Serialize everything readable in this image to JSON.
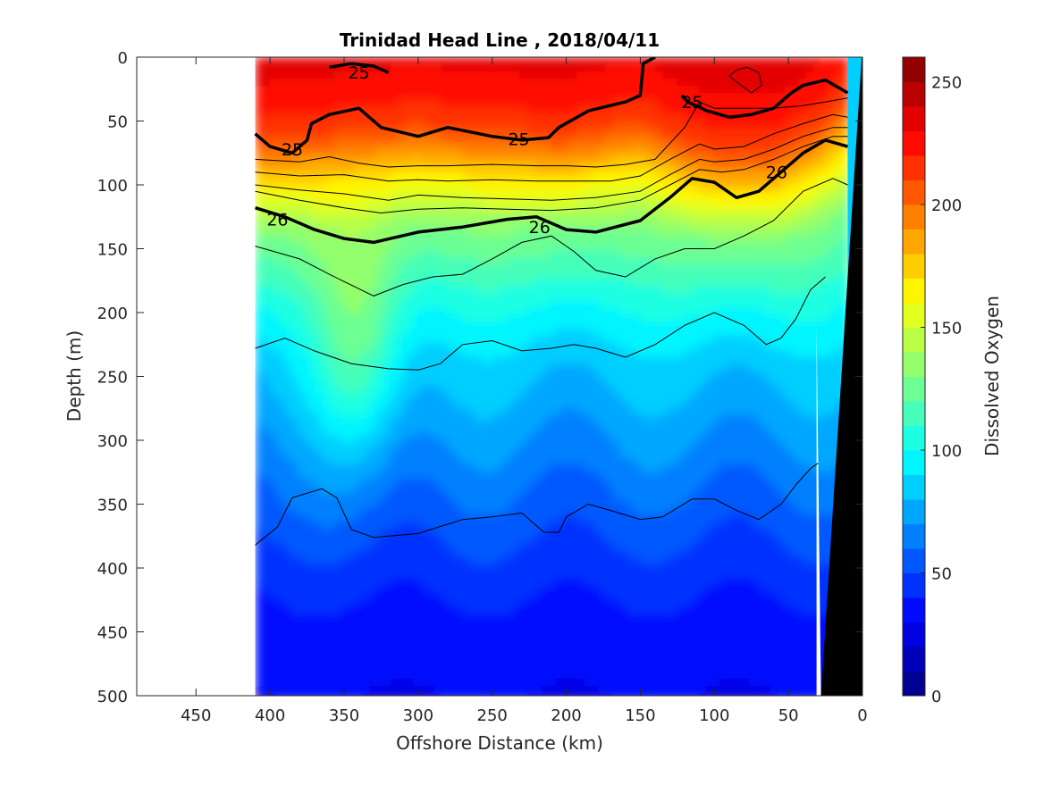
{
  "chart_data": {
    "type": "contour",
    "title": "Trinidad Head Line , 2018/04/11",
    "xlabel": "Offshore Distance (km)",
    "ylabel": "Depth (m)",
    "colorbar_label": "Dissolved Oxygen",
    "xlim": [
      490,
      0
    ],
    "ylim": [
      500,
      0
    ],
    "x_ticks": [
      450,
      400,
      350,
      300,
      250,
      200,
      150,
      100,
      50,
      0
    ],
    "y_ticks": [
      0,
      50,
      100,
      150,
      200,
      250,
      300,
      350,
      400,
      450,
      500
    ],
    "colorbar_ticks": [
      0,
      50,
      100,
      150,
      200,
      250
    ],
    "colorbar_range": [
      0,
      260
    ],
    "colorbar_levels": 26,
    "section_range_km": [
      410,
      10
    ],
    "oxygen_profile": {
      "depths": [
        0,
        30,
        60,
        80,
        100,
        120,
        140,
        170,
        200,
        240,
        280,
        320,
        360,
        400,
        450,
        500
      ],
      "values": [
        235,
        228,
        215,
        195,
        170,
        150,
        130,
        115,
        100,
        85,
        75,
        65,
        55,
        45,
        35,
        30
      ],
      "surface_boundary_km": [
        410,
        350,
        300,
        250,
        200,
        150,
        120,
        100,
        60,
        30,
        10
      ],
      "surface_boundary_depth": [
        70,
        60,
        55,
        60,
        65,
        50,
        70,
        80,
        80,
        55,
        30
      ],
      "low_oxygen_core_km": 340
    },
    "isopycnals": [
      {
        "label": "25",
        "x": [
          410,
          400,
          385,
          375,
          372,
          360,
          340,
          325,
          300,
          280,
          250,
          230,
          212,
          205,
          185,
          160,
          150,
          148,
          140
        ],
        "y": [
          60,
          70,
          75,
          65,
          52,
          45,
          40,
          55,
          62,
          55,
          62,
          65,
          63,
          55,
          42,
          35,
          30,
          5,
          0
        ]
      },
      {
        "label": "25",
        "x": [
          122,
          118,
          105,
          90,
          75,
          60,
          48,
          40,
          25,
          10
        ],
        "y": [
          30,
          35,
          42,
          47,
          45,
          40,
          28,
          22,
          18,
          28
        ]
      },
      {
        "label": "25",
        "x": [
          360,
          345,
          330,
          320
        ],
        "y": [
          8,
          5,
          7,
          12
        ]
      },
      {
        "label": "26",
        "x": [
          410,
          390,
          370,
          350,
          330,
          300,
          270,
          240,
          220,
          200,
          180,
          150,
          130,
          115,
          100,
          85,
          70,
          55,
          40,
          25,
          10
        ],
        "y": [
          118,
          125,
          135,
          142,
          145,
          137,
          133,
          127,
          125,
          135,
          137,
          128,
          110,
          95,
          98,
          110,
          105,
          90,
          75,
          65,
          70
        ]
      }
    ],
    "thin_contours": [
      {
        "x": [
          410,
          380,
          360,
          340,
          320,
          300,
          280,
          250,
          220,
          200,
          180,
          160,
          140,
          120,
          110,
          100,
          80,
          60,
          40,
          25,
          10
        ],
        "y": [
          80,
          82,
          78,
          83,
          86,
          85,
          85,
          84,
          85,
          85,
          86,
          84,
          80,
          55,
          35,
          40,
          40,
          40,
          38,
          35,
          32
        ]
      },
      {
        "x": [
          410,
          380,
          350,
          320,
          300,
          280,
          250,
          220,
          200,
          170,
          150,
          130,
          110,
          100,
          80,
          60,
          40,
          20,
          10
        ],
        "y": [
          90,
          93,
          92,
          97,
          96,
          97,
          96,
          97,
          97,
          97,
          93,
          80,
          68,
          72,
          70,
          60,
          52,
          45,
          47
        ]
      },
      {
        "x": [
          410,
          380,
          350,
          320,
          300,
          270,
          240,
          210,
          180,
          150,
          130,
          110,
          100,
          80,
          60,
          40,
          20,
          10
        ],
        "y": [
          100,
          104,
          107,
          112,
          108,
          110,
          111,
          112,
          110,
          105,
          92,
          80,
          82,
          80,
          72,
          62,
          55,
          55
        ]
      },
      {
        "x": [
          410,
          380,
          350,
          325,
          300,
          270,
          240,
          210,
          180,
          150,
          130,
          110,
          95,
          80,
          60,
          40,
          20,
          10
        ],
        "y": [
          105,
          112,
          118,
          122,
          119,
          118,
          119,
          120,
          118,
          112,
          100,
          88,
          90,
          88,
          80,
          70,
          62,
          62
        ]
      },
      {
        "x": [
          410,
          380,
          360,
          330,
          310,
          290,
          270,
          250,
          230,
          210,
          195,
          180,
          160,
          140,
          120,
          100,
          80,
          60,
          40,
          20,
          10
        ],
        "y": [
          148,
          158,
          170,
          187,
          178,
          172,
          170,
          158,
          145,
          140,
          152,
          167,
          172,
          158,
          150,
          150,
          140,
          128,
          105,
          95,
          100
        ]
      },
      {
        "x": [
          410,
          390,
          370,
          345,
          320,
          300,
          285,
          270,
          250,
          230,
          210,
          195,
          180,
          160,
          140,
          120,
          100,
          80,
          65,
          55,
          45,
          35,
          25
        ],
        "y": [
          228,
          220,
          230,
          240,
          244,
          245,
          240,
          225,
          222,
          230,
          228,
          225,
          228,
          235,
          225,
          210,
          200,
          210,
          225,
          220,
          205,
          182,
          172
        ]
      },
      {
        "x": [
          410,
          395,
          385,
          365,
          355,
          345,
          330,
          300,
          270,
          250,
          230,
          215,
          205,
          200,
          185,
          170,
          150,
          135,
          115,
          100,
          85,
          70,
          55,
          45,
          35,
          30
        ],
        "y": [
          382,
          368,
          345,
          338,
          345,
          370,
          376,
          373,
          362,
          360,
          357,
          372,
          372,
          360,
          350,
          355,
          362,
          360,
          346,
          346,
          355,
          362,
          350,
          335,
          322,
          318
        ]
      },
      {
        "x": [
          90,
          85,
          78,
          70,
          68,
          75,
          90
        ],
        "y": [
          15,
          10,
          8,
          12,
          22,
          28,
          15
        ]
      }
    ],
    "contour_labels": [
      {
        "text": "25",
        "x": 385,
        "y": 72
      },
      {
        "text": "25",
        "x": 232,
        "y": 64
      },
      {
        "text": "25",
        "x": 340,
        "y": 12
      },
      {
        "text": "25",
        "x": 115,
        "y": 35
      },
      {
        "text": "26",
        "x": 395,
        "y": 127
      },
      {
        "text": "26",
        "x": 218,
        "y": 133
      },
      {
        "text": "26",
        "x": 58,
        "y": 90
      }
    ],
    "bathymetry": {
      "x": [
        0,
        28,
        31,
        31,
        0
      ],
      "y": [
        0,
        500,
        500,
        210,
        0
      ],
      "wedge_x": [
        28,
        31,
        31
      ],
      "wedge_y": [
        500,
        500,
        210
      ]
    },
    "colors": {
      "land": "#000000",
      "gap": "#ffffff",
      "contour": "#000000"
    }
  }
}
